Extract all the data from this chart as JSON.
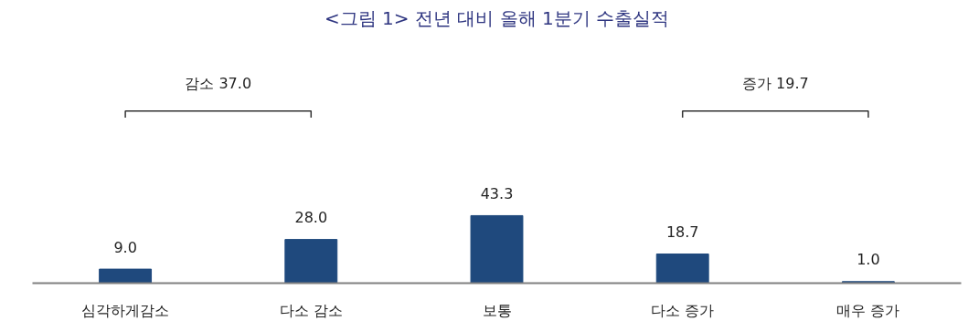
{
  "chart_data": {
    "type": "bar",
    "title": "<그림 1> 전년 대비 올해 1분기 수출실적",
    "categories": [
      "심각하게감소",
      "다소 감소",
      "보통",
      "다소 증가",
      "매우 증가"
    ],
    "values": [
      9.0,
      28.0,
      43.3,
      18.7,
      1.0
    ],
    "value_labels": [
      "9.0",
      "28.0",
      "43.3",
      "18.7",
      "1.0"
    ],
    "color": "#1f497d",
    "grid": false,
    "annotations": [
      "감소 37.0",
      "증가 19.7"
    ]
  }
}
